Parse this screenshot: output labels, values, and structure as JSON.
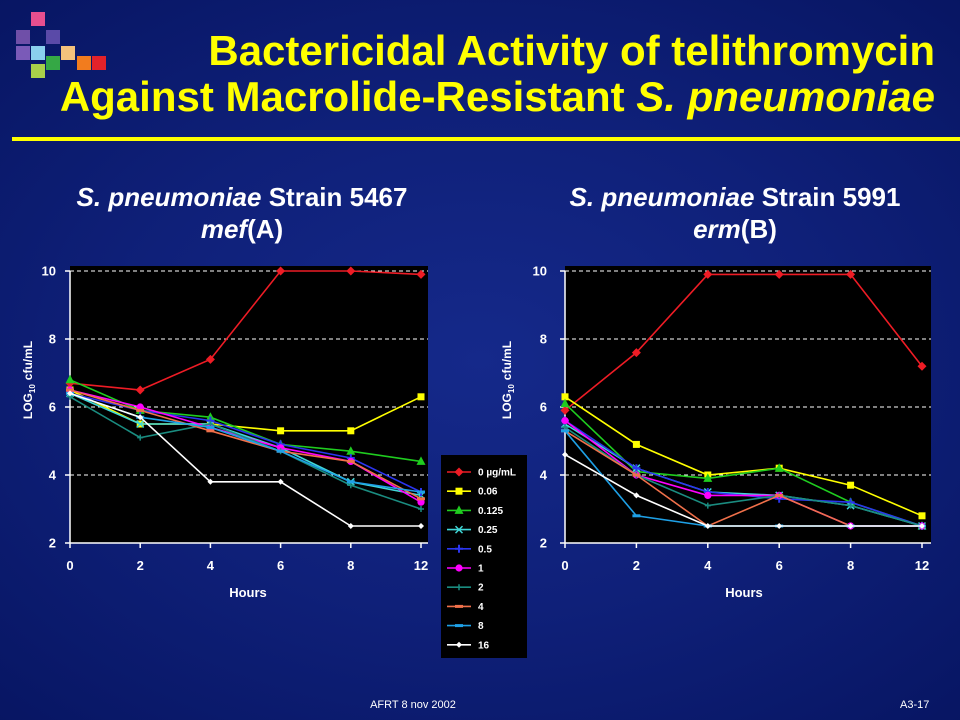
{
  "slide": {
    "title_line1": "Bactericidal Activity of telithromycin",
    "title_line2": "Against Macrolide-Resistant",
    "title_line2_italic": "S. pneumoniae",
    "footer_left": "AFRT 8 nov 2002",
    "footer_right": "A3-17",
    "colors": {
      "background": "#0c1c72",
      "title": "#ffff00",
      "rule": "#ffff00",
      "text": "#ffffff",
      "plot_background": "#000000"
    }
  },
  "chart_data": [
    {
      "type": "line",
      "title_italic": "S. pneumoniae",
      "title": "Strain 5467",
      "subtitle_italic": "mef",
      "subtitle": "(A)",
      "xlabel": "Hours",
      "ylabel": {
        "text": "LOG",
        "subscript": "10",
        "unit": "cfu/mL"
      },
      "categories": [
        "0",
        "2",
        "4",
        "6",
        "8",
        "12"
      ],
      "ylim": [
        2,
        10
      ],
      "yticks": [
        2,
        4,
        6,
        8,
        10
      ],
      "grid": true,
      "gridlines": [
        4,
        6,
        8,
        10
      ],
      "legend": "bottom-right",
      "series": [
        {
          "name": "0 µg/mL",
          "color": "#ee1c25",
          "marker": "diamond",
          "values": [
            6.7,
            6.5,
            7.4,
            10.0,
            10.0,
            9.9
          ]
        },
        {
          "name": "0.06",
          "color": "#ffff00",
          "marker": "square",
          "values": [
            6.5,
            5.5,
            5.5,
            5.3,
            5.3,
            6.3
          ]
        },
        {
          "name": "0.125",
          "color": "#1fcc1f",
          "marker": "triangle",
          "values": [
            6.8,
            5.9,
            5.7,
            4.9,
            4.7,
            4.4
          ]
        },
        {
          "name": "0.25",
          "color": "#40d8d8",
          "marker": "x",
          "values": [
            6.4,
            5.5,
            5.5,
            4.8,
            3.8,
            3.4
          ]
        },
        {
          "name": "0.5",
          "color": "#2b35f0",
          "marker": "asterisk",
          "values": [
            6.4,
            5.9,
            5.6,
            4.9,
            4.5,
            3.5
          ]
        },
        {
          "name": "1",
          "color": "#ff00ff",
          "marker": "circle",
          "values": [
            6.5,
            6.0,
            5.4,
            4.8,
            4.4,
            3.2
          ]
        },
        {
          "name": "2",
          "color": "#1a8c80",
          "marker": "plus",
          "values": [
            6.3,
            5.1,
            5.5,
            4.7,
            3.7,
            3.0
          ]
        },
        {
          "name": "4",
          "color": "#f0704a",
          "marker": "dash",
          "values": [
            6.5,
            5.9,
            5.3,
            4.7,
            4.4,
            3.3
          ]
        },
        {
          "name": "8",
          "color": "#1ea0e6",
          "marker": "dash",
          "values": [
            6.4,
            5.7,
            5.4,
            4.7,
            3.8,
            3.5
          ]
        },
        {
          "name": "16",
          "color": "#ffffff",
          "marker": "small-diamond",
          "values": [
            6.4,
            5.7,
            3.8,
            3.8,
            2.5,
            2.5
          ]
        }
      ]
    },
    {
      "type": "line",
      "title_italic": "S. pneumoniae",
      "title": "Strain 5991",
      "subtitle_italic": "erm",
      "subtitle": "(B)",
      "xlabel": "Hours",
      "ylabel": {
        "text": "LOG",
        "subscript": "10",
        "unit": "cfu/mL"
      },
      "categories": [
        "0",
        "2",
        "4",
        "6",
        "8",
        "12"
      ],
      "ylim": [
        2,
        10
      ],
      "yticks": [
        2,
        4,
        6,
        8,
        10
      ],
      "grid": true,
      "gridlines": [
        4,
        6,
        8,
        10
      ],
      "series": [
        {
          "name": "0 µg/mL",
          "color": "#ee1c25",
          "marker": "diamond",
          "values": [
            5.9,
            7.6,
            9.9,
            9.9,
            9.9,
            7.2
          ]
        },
        {
          "name": "0.06",
          "color": "#ffff00",
          "marker": "square",
          "values": [
            6.3,
            4.9,
            4.0,
            4.2,
            3.7,
            2.8
          ]
        },
        {
          "name": "0.125",
          "color": "#1fcc1f",
          "marker": "triangle",
          "values": [
            6.1,
            4.1,
            3.9,
            4.2,
            3.2,
            2.5
          ]
        },
        {
          "name": "0.25",
          "color": "#40d8d8",
          "marker": "x",
          "values": [
            5.5,
            4.2,
            3.5,
            3.4,
            3.1,
            2.5
          ]
        },
        {
          "name": "0.5",
          "color": "#2b35f0",
          "marker": "asterisk",
          "values": [
            5.6,
            4.2,
            3.5,
            3.3,
            3.2,
            2.5
          ]
        },
        {
          "name": "1",
          "color": "#ff00ff",
          "marker": "circle",
          "values": [
            5.6,
            4.0,
            3.4,
            3.4,
            2.5,
            2.5
          ]
        },
        {
          "name": "2",
          "color": "#1a8c80",
          "marker": "plus",
          "values": [
            5.4,
            4.0,
            3.1,
            3.4,
            3.1,
            2.5
          ]
        },
        {
          "name": "4",
          "color": "#f0704a",
          "marker": "dash",
          "values": [
            5.3,
            4.0,
            2.5,
            3.4,
            2.5,
            2.5
          ]
        },
        {
          "name": "8",
          "color": "#1ea0e6",
          "marker": "dash",
          "values": [
            5.3,
            2.8,
            2.5,
            2.5,
            2.5,
            2.5
          ]
        },
        {
          "name": "16",
          "color": "#ffffff",
          "marker": "small-diamond",
          "values": [
            4.6,
            3.4,
            2.5,
            2.5,
            2.5,
            2.5
          ]
        }
      ]
    }
  ]
}
